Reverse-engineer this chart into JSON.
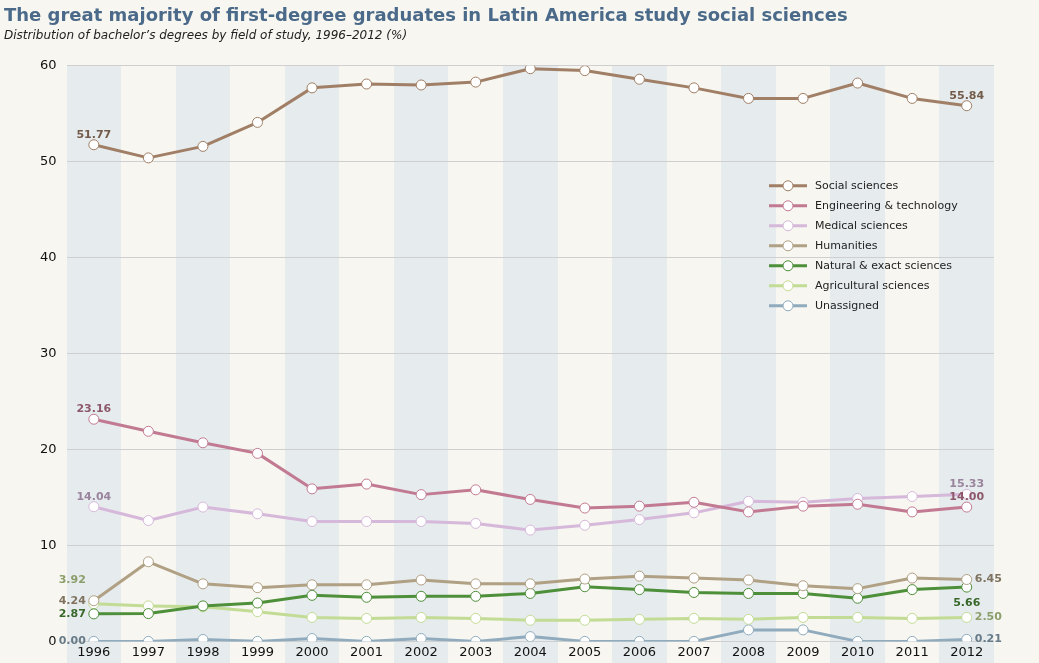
{
  "chart_data": {
    "type": "line",
    "title": "The great majority of first-degree graduates in Latin America study social sciences",
    "subtitle": "Distribution of bachelor’s degrees by field of study, 1996–2012 (%)",
    "categories": [
      "1996",
      "1997",
      "1998",
      "1999",
      "2000",
      "2001",
      "2002",
      "2003",
      "2004",
      "2005",
      "2006",
      "2007",
      "2008",
      "2009",
      "2010",
      "2011",
      "2012"
    ],
    "series": [
      {
        "name": "Social sciences",
        "color": "#a07f66",
        "values": [
          51.77,
          50.4,
          51.6,
          54.1,
          57.7,
          58.1,
          58.0,
          58.3,
          59.7,
          59.5,
          58.6,
          57.7,
          56.6,
          56.6,
          58.2,
          56.6,
          55.84
        ],
        "value_labels": [
          "51.77",
          null,
          null,
          null,
          null,
          null,
          null,
          null,
          null,
          null,
          null,
          null,
          null,
          null,
          null,
          null,
          "55.84"
        ]
      },
      {
        "name": "Engineering & technology",
        "color": "#c27a92",
        "values": [
          23.16,
          21.9,
          20.7,
          19.6,
          15.9,
          16.4,
          15.3,
          15.8,
          14.8,
          13.9,
          14.1,
          14.5,
          13.5,
          14.1,
          14.3,
          13.5,
          14.0
        ],
        "value_labels": [
          "23.16",
          null,
          null,
          null,
          null,
          null,
          null,
          null,
          null,
          null,
          null,
          null,
          null,
          null,
          null,
          null,
          "14.00"
        ]
      },
      {
        "name": "Medical sciences",
        "color": "#d6b8da",
        "values": [
          14.04,
          12.6,
          14.0,
          13.3,
          12.5,
          12.5,
          12.5,
          12.3,
          11.6,
          12.1,
          12.7,
          13.4,
          14.6,
          14.5,
          14.9,
          15.1,
          15.33
        ],
        "value_labels": [
          "14.04",
          null,
          null,
          null,
          null,
          null,
          null,
          null,
          null,
          null,
          null,
          null,
          null,
          null,
          null,
          null,
          "15.33"
        ]
      },
      {
        "name": "Humanities",
        "color": "#b0a084",
        "values": [
          4.24,
          8.3,
          6.0,
          5.6,
          5.9,
          5.9,
          6.4,
          6.0,
          6.0,
          6.5,
          6.8,
          6.6,
          6.4,
          5.8,
          5.5,
          6.6,
          6.45
        ],
        "value_labels": [
          "4.24",
          null,
          null,
          null,
          null,
          null,
          null,
          null,
          null,
          null,
          null,
          null,
          null,
          null,
          null,
          null,
          "6.45"
        ]
      },
      {
        "name": "Natural & exact sciences",
        "color": "#4e8f3a",
        "values": [
          2.87,
          2.9,
          3.7,
          4.0,
          4.8,
          4.6,
          4.7,
          4.7,
          5.0,
          5.7,
          5.4,
          5.1,
          5.0,
          5.0,
          4.5,
          5.4,
          5.66
        ],
        "value_labels": [
          "2.87",
          null,
          null,
          null,
          null,
          null,
          null,
          null,
          null,
          null,
          null,
          null,
          null,
          null,
          null,
          null,
          "5.66"
        ]
      },
      {
        "name": "Agricultural sciences",
        "color": "#c3dc95",
        "values": [
          3.92,
          3.7,
          3.6,
          3.1,
          2.5,
          2.4,
          2.5,
          2.4,
          2.2,
          2.2,
          2.3,
          2.4,
          2.3,
          2.5,
          2.5,
          2.4,
          2.5
        ],
        "value_labels": [
          "3.92",
          null,
          null,
          null,
          null,
          null,
          null,
          null,
          null,
          null,
          null,
          null,
          null,
          null,
          null,
          null,
          "2.50"
        ]
      },
      {
        "name": "Unassigned",
        "color": "#8fabbd",
        "values": [
          0.0,
          0,
          0.2,
          0,
          0.3,
          0,
          0.3,
          0,
          0.5,
          0,
          0,
          0,
          1.2,
          1.2,
          0,
          0,
          0.21
        ],
        "value_labels": [
          "0.00",
          null,
          null,
          null,
          null,
          null,
          null,
          null,
          null,
          null,
          null,
          null,
          null,
          null,
          null,
          null,
          "0.21"
        ]
      }
    ],
    "ylim": [
      0,
      60
    ],
    "yticks": [
      0,
      10,
      20,
      30,
      40,
      50,
      60
    ],
    "grid": "y",
    "legend": "right",
    "marker": "circle",
    "line_style": "solid"
  }
}
